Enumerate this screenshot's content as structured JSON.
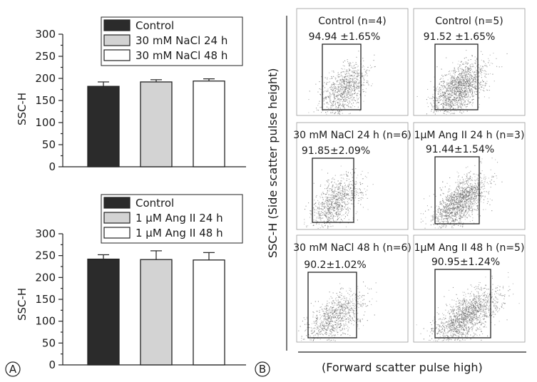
{
  "chart_data": [
    {
      "type": "bar",
      "categories": [
        "Control",
        "30 mM NaCl 24 h",
        "30 mM NaCl 48 h"
      ],
      "values": [
        182,
        192,
        194
      ],
      "errors": [
        10,
        5,
        5
      ],
      "colors": [
        "#2b2b2b",
        "#d3d3d3",
        "#ffffff"
      ],
      "legend": [
        "Control",
        "30 mM NaCl 24 h",
        "30 mM NaCl 48 h"
      ],
      "ylabel": "SSC-H",
      "ylim": [
        0,
        300
      ],
      "yticks": [
        "300",
        "250",
        "200",
        "150",
        "100",
        "50",
        "0"
      ]
    },
    {
      "type": "bar",
      "categories": [
        "Control",
        "1 μM Ang II 24 h",
        "1 μM Ang II 48 h"
      ],
      "values": [
        242,
        241,
        240
      ],
      "errors": [
        10,
        20,
        17
      ],
      "colors": [
        "#2b2b2b",
        "#d3d3d3",
        "#ffffff"
      ],
      "legend": [
        "Control",
        "1 μM Ang II 24 h",
        "1 μM Ang II 48 h"
      ],
      "ylabel": "SSC-H",
      "ylim": [
        0,
        300
      ],
      "yticks": [
        "300",
        "250",
        "200",
        "150",
        "100",
        "50",
        "0"
      ]
    }
  ],
  "scatter_panels": [
    {
      "title": "Control (n=4)",
      "value": "94.94 ±1.65%"
    },
    {
      "title": "Control (n=5)",
      "value": "91.52 ±1.65%"
    },
    {
      "title": "30 mM NaCl 24 h (n=6)",
      "value": "91.85±2.09%"
    },
    {
      "title": "1μM Ang II 24 h (n=3)",
      "value": "91.44±1.54%"
    },
    {
      "title": "30 mM NaCl 48 h (n=6)",
      "value": "90.2±1.02%"
    },
    {
      "title": "1μM Ang II 48 h (n=5)",
      "value": "90.95±1.24%"
    }
  ],
  "scatter_axes": {
    "ylabel": "SSC-H (Side scatter pulse height)",
    "xlabel": "(Forward scatter pulse high)"
  },
  "panel_labels": {
    "a": "A",
    "b": "B"
  }
}
